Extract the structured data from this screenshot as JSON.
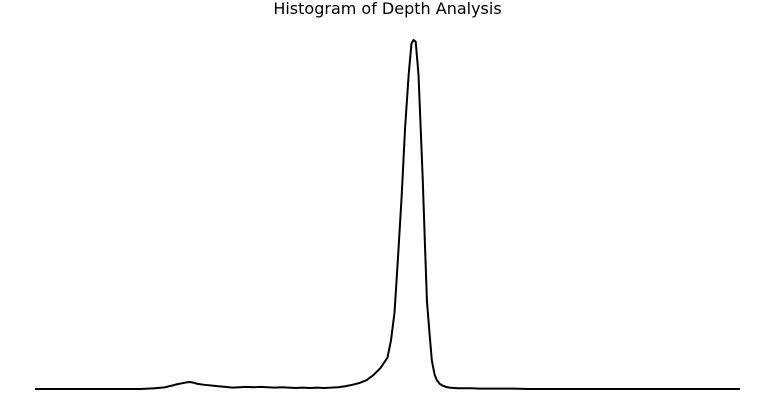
{
  "chart_data": {
    "type": "line",
    "title": "Histogram of Depth Analysis",
    "xlabel": "",
    "ylabel": "",
    "axes_visible": false,
    "grid": false,
    "legend": "none",
    "xlim": [
      0,
      1
    ],
    "ylim": [
      0,
      1
    ],
    "line_color": "#000000",
    "series": [
      {
        "x": [
          0.0,
          0.06,
          0.11,
          0.15,
          0.17,
          0.18,
          0.185,
          0.19,
          0.195,
          0.2,
          0.205,
          0.21,
          0.215,
          0.22,
          0.225,
          0.23,
          0.24,
          0.25,
          0.26,
          0.27,
          0.28,
          0.29,
          0.3,
          0.31,
          0.32,
          0.33,
          0.34,
          0.35,
          0.36,
          0.37,
          0.38,
          0.39,
          0.4,
          0.41,
          0.42,
          0.43,
          0.44,
          0.45,
          0.46,
          0.47,
          0.48,
          0.49,
          0.5,
          0.505,
          0.51,
          0.515,
          0.52,
          0.525,
          0.53,
          0.534,
          0.537,
          0.54,
          0.544,
          0.547,
          0.55,
          0.553,
          0.556,
          0.56,
          0.563,
          0.567,
          0.57,
          0.574,
          0.578,
          0.583,
          0.588,
          0.595,
          0.6,
          0.61,
          0.62,
          0.63,
          0.64,
          0.65,
          0.66,
          0.68,
          0.7,
          0.72,
          0.75,
          0.8,
          0.85,
          0.9,
          0.95,
          1.0
        ],
        "y": [
          0.0,
          0.0,
          0.0,
          0.0,
          0.002,
          0.004,
          0.005,
          0.008,
          0.01,
          0.013,
          0.015,
          0.017,
          0.019,
          0.02,
          0.018,
          0.015,
          0.012,
          0.01,
          0.008,
          0.006,
          0.004,
          0.005,
          0.006,
          0.005,
          0.006,
          0.005,
          0.004,
          0.005,
          0.004,
          0.003,
          0.004,
          0.003,
          0.004,
          0.003,
          0.004,
          0.005,
          0.008,
          0.012,
          0.017,
          0.025,
          0.04,
          0.06,
          0.09,
          0.14,
          0.22,
          0.38,
          0.55,
          0.75,
          0.9,
          0.99,
          1.0,
          0.995,
          0.9,
          0.75,
          0.6,
          0.42,
          0.25,
          0.15,
          0.08,
          0.04,
          0.025,
          0.015,
          0.01,
          0.006,
          0.004,
          0.003,
          0.002,
          0.002,
          0.002,
          0.001,
          0.001,
          0.001,
          0.001,
          0.001,
          0.0,
          0.0,
          0.0,
          0.0,
          0.0,
          0.0,
          0.0,
          0.0
        ]
      }
    ]
  }
}
